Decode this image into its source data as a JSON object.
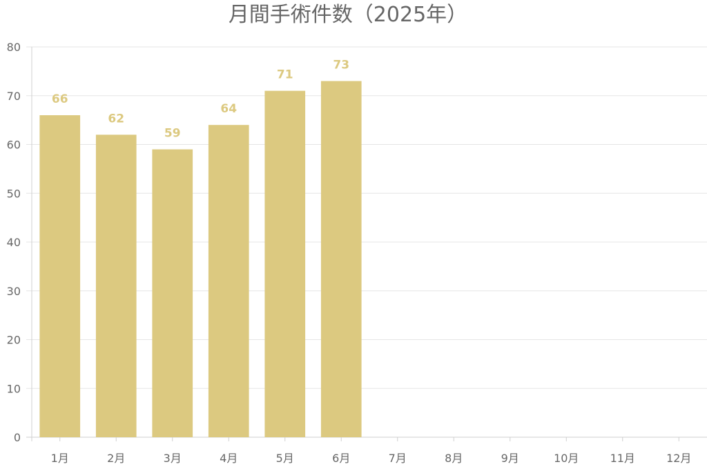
{
  "colors": {
    "bar": "#dcc980",
    "label": "#dcc980",
    "grid": "#e5e5e5",
    "text": "#666666"
  },
  "chart_data": {
    "type": "bar",
    "title": "月間手術件数（2025年）",
    "xlabel": "",
    "ylabel": "",
    "categories": [
      "1月",
      "2月",
      "3月",
      "4月",
      "5月",
      "6月",
      "7月",
      "8月",
      "9月",
      "10月",
      "11月",
      "12月"
    ],
    "values": [
      66,
      62,
      59,
      64,
      71,
      73,
      null,
      null,
      null,
      null,
      null,
      null
    ],
    "ylim": [
      0,
      80
    ],
    "yticks": [
      0,
      10,
      20,
      30,
      40,
      50,
      60,
      70,
      80
    ],
    "grid": true,
    "legend": "none",
    "data_labels": true
  }
}
